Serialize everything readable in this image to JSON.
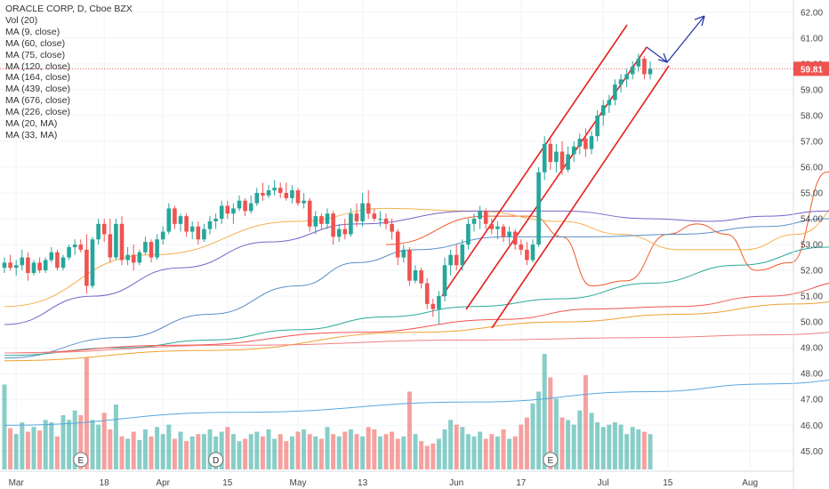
{
  "legend": {
    "title": "ORACLE CORP, D, Cboe BZX",
    "items": [
      "Vol (20)",
      "MA (9, close)",
      "MA (60, close)",
      "MA (75, close)",
      "MA (120, close)",
      "MA (164, close)",
      "MA (439, close)",
      "MA (676, close)",
      "MA (226, close)",
      "MA (20, MA)",
      "MA (33, MA)"
    ]
  },
  "price_badge": "59.81",
  "price_badge_color": "#ef5350",
  "event_markers": [
    "E",
    "D",
    "E"
  ],
  "chart_data": {
    "type": "candlestick",
    "y_ticks": [
      "62.00",
      "61.00",
      "60.00",
      "59.00",
      "58.00",
      "57.00",
      "56.00",
      "55.00",
      "54.00",
      "53.00",
      "52.00",
      "51.00",
      "50.00",
      "49.00",
      "48.00",
      "47.00",
      "46.00",
      "45.00"
    ],
    "ylim": [
      44.7,
      62.2
    ],
    "x_ticks": [
      "Mar",
      "18",
      "Apr",
      "15",
      "May",
      "13",
      "Jun",
      "17",
      "Jul",
      "15",
      "Aug"
    ],
    "current_price": 59.81,
    "up_color": "#26a69a",
    "down_color": "#ef5350",
    "candles": [
      {
        "o": 52.1,
        "h": 52.5,
        "l": 51.9,
        "c": 52.3
      },
      {
        "o": 52.3,
        "h": 52.6,
        "l": 52.0,
        "c": 52.1
      },
      {
        "o": 52.1,
        "h": 52.4,
        "l": 51.8,
        "c": 52.2
      },
      {
        "o": 52.2,
        "h": 52.8,
        "l": 52.0,
        "c": 52.5
      },
      {
        "o": 52.5,
        "h": 52.7,
        "l": 51.6,
        "c": 51.9
      },
      {
        "o": 51.9,
        "h": 52.4,
        "l": 51.8,
        "c": 52.3
      },
      {
        "o": 52.3,
        "h": 52.5,
        "l": 51.9,
        "c": 52.0
      },
      {
        "o": 52.0,
        "h": 52.5,
        "l": 51.9,
        "c": 52.4
      },
      {
        "o": 52.4,
        "h": 52.9,
        "l": 52.3,
        "c": 52.7
      },
      {
        "o": 52.7,
        "h": 52.8,
        "l": 52.0,
        "c": 52.1
      },
      {
        "o": 52.1,
        "h": 52.6,
        "l": 52.0,
        "c": 52.5
      },
      {
        "o": 52.5,
        "h": 53.0,
        "l": 52.4,
        "c": 52.9
      },
      {
        "o": 52.9,
        "h": 53.2,
        "l": 52.6,
        "c": 53.0
      },
      {
        "o": 53.0,
        "h": 53.2,
        "l": 52.7,
        "c": 52.8
      },
      {
        "o": 52.8,
        "h": 53.4,
        "l": 51.1,
        "c": 51.4
      },
      {
        "o": 51.4,
        "h": 53.3,
        "l": 51.3,
        "c": 53.2
      },
      {
        "o": 53.2,
        "h": 54.0,
        "l": 53.0,
        "c": 53.8
      },
      {
        "o": 53.8,
        "h": 54.0,
        "l": 53.1,
        "c": 53.4
      },
      {
        "o": 53.4,
        "h": 54.0,
        "l": 52.3,
        "c": 52.5
      },
      {
        "o": 52.5,
        "h": 54.0,
        "l": 52.4,
        "c": 53.8
      },
      {
        "o": 53.8,
        "h": 54.1,
        "l": 52.2,
        "c": 52.4
      },
      {
        "o": 52.4,
        "h": 52.9,
        "l": 52.2,
        "c": 52.6
      },
      {
        "o": 52.6,
        "h": 53.0,
        "l": 52.0,
        "c": 52.3
      },
      {
        "o": 52.3,
        "h": 52.8,
        "l": 52.2,
        "c": 52.7
      },
      {
        "o": 52.7,
        "h": 53.3,
        "l": 52.6,
        "c": 53.1
      },
      {
        "o": 53.1,
        "h": 53.2,
        "l": 52.3,
        "c": 52.5
      },
      {
        "o": 52.5,
        "h": 53.4,
        "l": 52.4,
        "c": 53.2
      },
      {
        "o": 53.2,
        "h": 53.7,
        "l": 53.0,
        "c": 53.5
      },
      {
        "o": 53.5,
        "h": 54.6,
        "l": 53.4,
        "c": 54.4
      },
      {
        "o": 54.4,
        "h": 54.5,
        "l": 53.6,
        "c": 53.8
      },
      {
        "o": 53.8,
        "h": 54.2,
        "l": 53.5,
        "c": 54.1
      },
      {
        "o": 54.1,
        "h": 54.2,
        "l": 53.3,
        "c": 53.5
      },
      {
        "o": 53.5,
        "h": 53.9,
        "l": 53.2,
        "c": 53.7
      },
      {
        "o": 53.7,
        "h": 53.9,
        "l": 53.0,
        "c": 53.2
      },
      {
        "o": 53.2,
        "h": 53.8,
        "l": 53.1,
        "c": 53.6
      },
      {
        "o": 53.6,
        "h": 54.1,
        "l": 53.4,
        "c": 53.9
      },
      {
        "o": 53.9,
        "h": 54.2,
        "l": 53.6,
        "c": 54.0
      },
      {
        "o": 54.0,
        "h": 54.7,
        "l": 53.8,
        "c": 54.5
      },
      {
        "o": 54.5,
        "h": 54.7,
        "l": 54.0,
        "c": 54.2
      },
      {
        "o": 54.2,
        "h": 54.6,
        "l": 53.8,
        "c": 54.4
      },
      {
        "o": 54.4,
        "h": 54.9,
        "l": 54.3,
        "c": 54.7
      },
      {
        "o": 54.7,
        "h": 54.8,
        "l": 54.1,
        "c": 54.3
      },
      {
        "o": 54.3,
        "h": 54.9,
        "l": 54.2,
        "c": 54.6
      },
      {
        "o": 54.6,
        "h": 55.2,
        "l": 54.5,
        "c": 55.0
      },
      {
        "o": 55.0,
        "h": 55.4,
        "l": 54.7,
        "c": 54.9
      },
      {
        "o": 54.9,
        "h": 55.3,
        "l": 54.8,
        "c": 55.1
      },
      {
        "o": 55.1,
        "h": 55.5,
        "l": 54.9,
        "c": 55.2
      },
      {
        "o": 55.2,
        "h": 55.4,
        "l": 54.8,
        "c": 55.0
      },
      {
        "o": 55.0,
        "h": 55.4,
        "l": 54.7,
        "c": 54.8
      },
      {
        "o": 54.8,
        "h": 55.3,
        "l": 54.6,
        "c": 55.1
      },
      {
        "o": 55.1,
        "h": 55.2,
        "l": 54.5,
        "c": 54.6
      },
      {
        "o": 54.6,
        "h": 55.0,
        "l": 54.4,
        "c": 54.7
      },
      {
        "o": 54.7,
        "h": 54.8,
        "l": 53.5,
        "c": 53.7
      },
      {
        "o": 53.7,
        "h": 54.3,
        "l": 53.4,
        "c": 54.1
      },
      {
        "o": 54.1,
        "h": 54.2,
        "l": 53.6,
        "c": 53.8
      },
      {
        "o": 53.8,
        "h": 54.4,
        "l": 53.6,
        "c": 54.2
      },
      {
        "o": 54.2,
        "h": 54.3,
        "l": 53.0,
        "c": 53.3
      },
      {
        "o": 53.3,
        "h": 53.8,
        "l": 53.1,
        "c": 53.6
      },
      {
        "o": 53.6,
        "h": 54.0,
        "l": 53.2,
        "c": 53.4
      },
      {
        "o": 53.4,
        "h": 54.4,
        "l": 53.3,
        "c": 54.2
      },
      {
        "o": 54.2,
        "h": 54.6,
        "l": 53.7,
        "c": 53.9
      },
      {
        "o": 53.9,
        "h": 55.0,
        "l": 53.7,
        "c": 54.6
      },
      {
        "o": 54.6,
        "h": 55.1,
        "l": 54.0,
        "c": 54.2
      },
      {
        "o": 54.2,
        "h": 54.4,
        "l": 53.9,
        "c": 54.0
      },
      {
        "o": 54.0,
        "h": 54.3,
        "l": 53.7,
        "c": 54.0
      },
      {
        "o": 54.0,
        "h": 54.2,
        "l": 53.6,
        "c": 53.8
      },
      {
        "o": 53.8,
        "h": 54.0,
        "l": 53.2,
        "c": 53.5
      },
      {
        "o": 53.5,
        "h": 53.6,
        "l": 52.2,
        "c": 52.5
      },
      {
        "o": 52.5,
        "h": 53.0,
        "l": 52.3,
        "c": 52.8
      },
      {
        "o": 52.8,
        "h": 52.9,
        "l": 51.4,
        "c": 51.6
      },
      {
        "o": 51.6,
        "h": 52.2,
        "l": 51.5,
        "c": 52.0
      },
      {
        "o": 52.0,
        "h": 52.1,
        "l": 51.3,
        "c": 51.5
      },
      {
        "o": 51.5,
        "h": 51.7,
        "l": 50.5,
        "c": 50.7
      },
      {
        "o": 50.7,
        "h": 50.9,
        "l": 50.2,
        "c": 50.5
      },
      {
        "o": 50.5,
        "h": 51.2,
        "l": 49.9,
        "c": 51.0
      },
      {
        "o": 51.0,
        "h": 52.5,
        "l": 50.8,
        "c": 52.2
      },
      {
        "o": 52.2,
        "h": 52.8,
        "l": 51.8,
        "c": 52.6
      },
      {
        "o": 52.6,
        "h": 53.0,
        "l": 52.0,
        "c": 52.2
      },
      {
        "o": 52.2,
        "h": 53.2,
        "l": 52.0,
        "c": 53.0
      },
      {
        "o": 53.0,
        "h": 54.0,
        "l": 52.8,
        "c": 53.8
      },
      {
        "o": 53.8,
        "h": 54.2,
        "l": 53.5,
        "c": 54.0
      },
      {
        "o": 54.0,
        "h": 54.5,
        "l": 53.6,
        "c": 54.3
      },
      {
        "o": 54.3,
        "h": 54.4,
        "l": 53.6,
        "c": 53.8
      },
      {
        "o": 53.8,
        "h": 54.0,
        "l": 53.4,
        "c": 53.6
      },
      {
        "o": 53.6,
        "h": 53.9,
        "l": 53.2,
        "c": 53.7
      },
      {
        "o": 53.7,
        "h": 53.8,
        "l": 53.1,
        "c": 53.3
      },
      {
        "o": 53.3,
        "h": 53.7,
        "l": 53.0,
        "c": 53.5
      },
      {
        "o": 53.5,
        "h": 53.6,
        "l": 52.8,
        "c": 53.0
      },
      {
        "o": 53.0,
        "h": 53.2,
        "l": 52.6,
        "c": 52.8
      },
      {
        "o": 52.8,
        "h": 53.1,
        "l": 52.2,
        "c": 52.4
      },
      {
        "o": 52.4,
        "h": 53.2,
        "l": 52.3,
        "c": 53.0
      },
      {
        "o": 53.0,
        "h": 56.0,
        "l": 52.9,
        "c": 55.8
      },
      {
        "o": 55.8,
        "h": 57.2,
        "l": 55.5,
        "c": 56.9
      },
      {
        "o": 56.9,
        "h": 57.1,
        "l": 55.9,
        "c": 56.2
      },
      {
        "o": 56.2,
        "h": 56.9,
        "l": 55.8,
        "c": 56.6
      },
      {
        "o": 56.6,
        "h": 57.0,
        "l": 55.7,
        "c": 55.9
      },
      {
        "o": 55.9,
        "h": 56.8,
        "l": 55.8,
        "c": 56.5
      },
      {
        "o": 56.5,
        "h": 57.0,
        "l": 56.2,
        "c": 56.8
      },
      {
        "o": 56.8,
        "h": 57.3,
        "l": 56.5,
        "c": 57.1
      },
      {
        "o": 57.1,
        "h": 57.5,
        "l": 56.4,
        "c": 56.7
      },
      {
        "o": 56.7,
        "h": 57.4,
        "l": 56.5,
        "c": 57.2
      },
      {
        "o": 57.2,
        "h": 58.2,
        "l": 57.0,
        "c": 58.0
      },
      {
        "o": 58.0,
        "h": 58.6,
        "l": 57.6,
        "c": 58.4
      },
      {
        "o": 58.4,
        "h": 58.8,
        "l": 58.1,
        "c": 58.6
      },
      {
        "o": 58.6,
        "h": 59.4,
        "l": 58.4,
        "c": 59.2
      },
      {
        "o": 59.2,
        "h": 59.6,
        "l": 58.9,
        "c": 59.4
      },
      {
        "o": 59.4,
        "h": 59.8,
        "l": 59.1,
        "c": 59.6
      },
      {
        "o": 59.6,
        "h": 60.1,
        "l": 59.4,
        "c": 59.9
      },
      {
        "o": 59.9,
        "h": 60.4,
        "l": 59.7,
        "c": 60.2
      },
      {
        "o": 60.2,
        "h": 60.3,
        "l": 59.4,
        "c": 59.6
      },
      {
        "o": 59.6,
        "h": 60.1,
        "l": 59.4,
        "c": 59.81
      }
    ],
    "volume": [
      72,
      35,
      30,
      40,
      32,
      36,
      33,
      42,
      40,
      28,
      46,
      42,
      50,
      46,
      95,
      42,
      38,
      48,
      34,
      55,
      28,
      26,
      32,
      25,
      34,
      28,
      36,
      30,
      38,
      26,
      32,
      24,
      28,
      30,
      30,
      34,
      28,
      32,
      36,
      30,
      24,
      26,
      30,
      32,
      28,
      34,
      26,
      30,
      24,
      28,
      32,
      34,
      30,
      28,
      26,
      36,
      30,
      28,
      32,
      34,
      30,
      28,
      36,
      34,
      28,
      30,
      32,
      26,
      28,
      66,
      30,
      24,
      20,
      22,
      26,
      34,
      42,
      38,
      36,
      30,
      28,
      32,
      26,
      30,
      28,
      34,
      26,
      28,
      38,
      44,
      56,
      66,
      98,
      78,
      60,
      44,
      42,
      38,
      50,
      80,
      48,
      40,
      36,
      38,
      40,
      38,
      30,
      36,
      34,
      32,
      30
    ]
  }
}
